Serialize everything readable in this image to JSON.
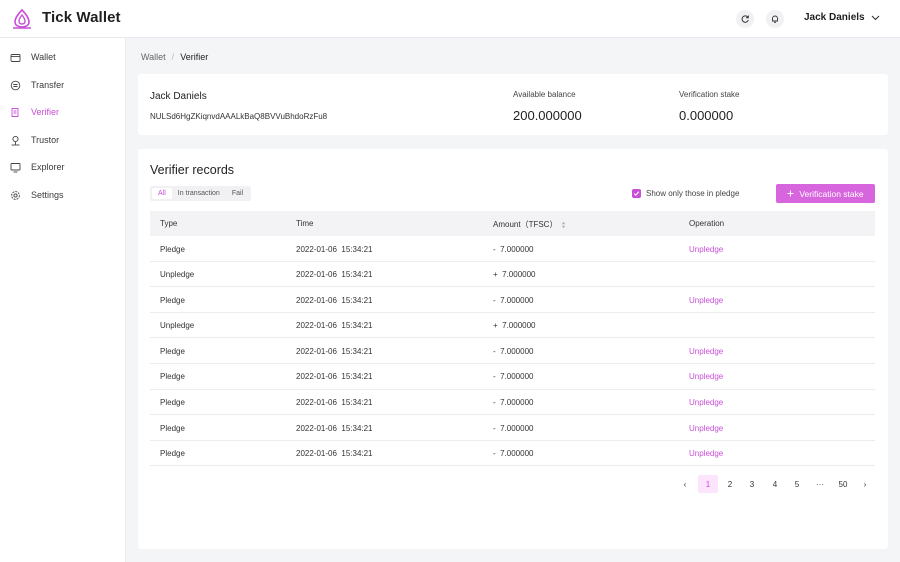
{
  "app": {
    "title": "Tick Wallet"
  },
  "user": {
    "name": "Jack Daniels"
  },
  "colors": {
    "accent": "#c94fd8",
    "button": "#d765dd"
  },
  "sidebar": {
    "items": [
      {
        "label": "Wallet",
        "icon": "wallet-icon"
      },
      {
        "label": "Transfer",
        "icon": "transfer-icon"
      },
      {
        "label": "Verifier",
        "icon": "verifier-icon",
        "active": true
      },
      {
        "label": "Trustor",
        "icon": "trustor-icon"
      },
      {
        "label": "Explorer",
        "icon": "explorer-icon"
      },
      {
        "label": "Settings",
        "icon": "gear-icon"
      }
    ]
  },
  "breadcrumb": {
    "root": "Wallet",
    "current": "Verifier"
  },
  "summary": {
    "name": "Jack Daniels",
    "address": "NULSd6HgZKiqnvdAAALkBaQ8BVVuBhdoRzFu8",
    "available_label": "Available balance",
    "available_value": "200.000000",
    "stake_label": "Verification stake",
    "stake_value": "0.000000"
  },
  "records": {
    "title": "Verifier records",
    "filters": [
      "All",
      "In transaction",
      "Fail"
    ],
    "active_filter": "All",
    "pledge_only_label": "Show only those in pledge",
    "stake_button": "Verification stake",
    "columns": {
      "type": "Type",
      "time": "Time",
      "amount": "Amount（TFSC）",
      "operation": "Operation"
    },
    "rows": [
      {
        "type": "Pledge",
        "time": "2022-01-06  15:34:21",
        "amount": "-  7.000000",
        "operation": "Unpledge"
      },
      {
        "type": "Unpledge",
        "time": "2022-01-06  15:34:21",
        "amount": "+  7.000000",
        "operation": ""
      },
      {
        "type": "Pledge",
        "time": "2022-01-06  15:34:21",
        "amount": "-  7.000000",
        "operation": "Unpledge"
      },
      {
        "type": "Unpledge",
        "time": "2022-01-06  15:34:21",
        "amount": "+  7.000000",
        "operation": ""
      },
      {
        "type": "Pledge",
        "time": "2022-01-06  15:34:21",
        "amount": "-  7.000000",
        "operation": "Unpledge"
      },
      {
        "type": "Pledge",
        "time": "2022-01-06  15:34:21",
        "amount": "-  7.000000",
        "operation": "Unpledge"
      },
      {
        "type": "Pledge",
        "time": "2022-01-06  15:34:21",
        "amount": "-  7.000000",
        "operation": "Unpledge"
      },
      {
        "type": "Pledge",
        "time": "2022-01-06  15:34:21",
        "amount": "-  7.000000",
        "operation": "Unpledge"
      },
      {
        "type": "Pledge",
        "time": "2022-01-06  15:34:21",
        "amount": "-  7.000000",
        "operation": "Unpledge"
      }
    ]
  },
  "pagination": {
    "prev": "‹",
    "pages": [
      "1",
      "2",
      "3",
      "4",
      "5",
      "···",
      "50"
    ],
    "current": "1",
    "next": "›"
  }
}
